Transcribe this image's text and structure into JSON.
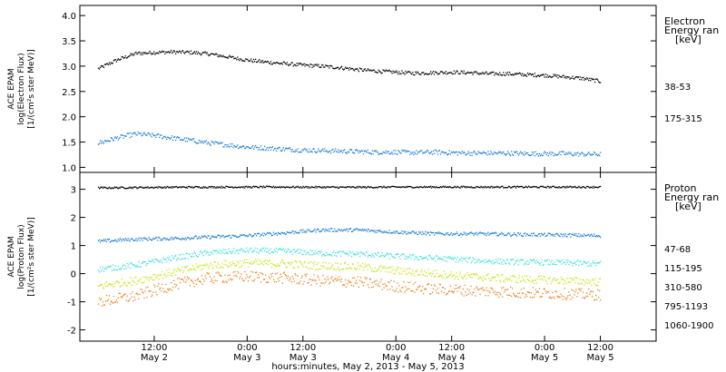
{
  "chart_data": [
    {
      "type": "scatter",
      "panel": "electron",
      "ylabel_lines": [
        "ACE EPAM",
        "log(Electron Flux)",
        "[1/(cm²s ster MeV)]"
      ],
      "ylim": [
        0.9,
        4.2
      ],
      "yticks": [
        1.0,
        1.5,
        2.0,
        2.5,
        3.0,
        3.5,
        4.0
      ],
      "ytick_labels": [
        "1.0",
        "1.5",
        "2.0",
        "2.5",
        "3.0",
        "3.5",
        "4.0"
      ],
      "legend_title_lines": [
        "Electron",
        "Energy ran",
        "[keV]"
      ],
      "series": [
        {
          "name": "38-53",
          "color": "#000000",
          "x": [
            0,
            3,
            6,
            9,
            12,
            15,
            18,
            21,
            24,
            27,
            30,
            33,
            36,
            39,
            42,
            45,
            48,
            51,
            54,
            57,
            60,
            63,
            66,
            69,
            72,
            75,
            78,
            81
          ],
          "values": [
            2.95,
            3.12,
            3.25,
            3.27,
            3.28,
            3.27,
            3.24,
            3.18,
            3.12,
            3.08,
            3.05,
            3.02,
            3.0,
            2.97,
            2.93,
            2.9,
            2.88,
            2.86,
            2.87,
            2.88,
            2.87,
            2.85,
            2.85,
            2.83,
            2.82,
            2.79,
            2.76,
            2.7
          ],
          "noise": 0.035
        },
        {
          "name": "175-315",
          "color": "#1e7fd8",
          "x": [
            0,
            3,
            6,
            9,
            12,
            15,
            18,
            21,
            24,
            27,
            30,
            33,
            36,
            39,
            42,
            45,
            48,
            51,
            54,
            57,
            60,
            63,
            66,
            69,
            72,
            75,
            78,
            81
          ],
          "values": [
            1.48,
            1.58,
            1.66,
            1.63,
            1.58,
            1.53,
            1.48,
            1.44,
            1.4,
            1.38,
            1.36,
            1.34,
            1.33,
            1.32,
            1.31,
            1.3,
            1.3,
            1.29,
            1.3,
            1.29,
            1.28,
            1.28,
            1.28,
            1.27,
            1.27,
            1.27,
            1.26,
            1.26
          ],
          "noise": 0.045
        }
      ]
    },
    {
      "type": "scatter",
      "panel": "proton",
      "ylabel_lines": [
        "ACE EPAM",
        "log(Proton Flux)",
        "[1/(cm²s ster MeV)]"
      ],
      "ylim": [
        -2.4,
        3.6
      ],
      "yticks": [
        -2,
        -1,
        0,
        1,
        2,
        3
      ],
      "ytick_labels": [
        "-2",
        "-1",
        "0",
        "1",
        "2",
        "3"
      ],
      "legend_title_lines": [
        "Proton",
        "Energy ran",
        "[keV]"
      ],
      "series": [
        {
          "name": "47-68",
          "color": "#000000",
          "x": [
            0,
            10,
            20,
            30,
            40,
            50,
            60,
            70,
            81
          ],
          "values": [
            3.05,
            3.07,
            3.08,
            3.08,
            3.07,
            3.08,
            3.08,
            3.08,
            3.08
          ],
          "noise": 0.03
        },
        {
          "name": "115-195",
          "color": "#1e7fd8",
          "x": [
            0,
            6,
            12,
            18,
            24,
            30,
            36,
            42,
            48,
            54,
            60,
            66,
            72,
            81
          ],
          "values": [
            1.15,
            1.22,
            1.25,
            1.3,
            1.35,
            1.45,
            1.55,
            1.55,
            1.48,
            1.42,
            1.42,
            1.4,
            1.38,
            1.35
          ],
          "noise": 0.06
        },
        {
          "name": "310-580",
          "color": "#3ce0dc",
          "x": [
            0,
            6,
            12,
            18,
            24,
            30,
            36,
            42,
            48,
            54,
            60,
            66,
            72,
            81
          ],
          "values": [
            0.15,
            0.3,
            0.55,
            0.75,
            0.82,
            0.8,
            0.72,
            0.7,
            0.62,
            0.55,
            0.48,
            0.42,
            0.4,
            0.35
          ],
          "noise": 0.1
        },
        {
          "name": "795-1193",
          "color": "#c8e614",
          "x": [
            0,
            6,
            12,
            18,
            24,
            30,
            36,
            42,
            48,
            54,
            60,
            66,
            72,
            81
          ],
          "values": [
            -0.45,
            -0.25,
            0.05,
            0.3,
            0.38,
            0.35,
            0.28,
            0.25,
            0.1,
            0.0,
            -0.1,
            -0.18,
            -0.22,
            -0.3
          ],
          "noise": 0.14
        },
        {
          "name": "1060-1900",
          "color": "#e8821c",
          "x": [
            0,
            6,
            12,
            18,
            24,
            30,
            36,
            42,
            48,
            54,
            60,
            66,
            72,
            81
          ],
          "values": [
            -1.0,
            -0.8,
            -0.4,
            -0.15,
            -0.1,
            -0.15,
            -0.25,
            -0.3,
            -0.45,
            -0.55,
            -0.6,
            -0.65,
            -0.7,
            -0.75
          ],
          "noise": 0.2
        }
      ]
    }
  ],
  "xaxis": {
    "xlim": [
      -3,
      90
    ],
    "ticks": [
      9,
      24,
      33,
      48,
      57,
      72,
      81,
      96
    ],
    "tick_labels": [
      {
        "time": "12:00",
        "day": "May 2"
      },
      {
        "time": "0:00",
        "day": "May 3"
      },
      {
        "time": "12:00",
        "day": "May 3"
      },
      {
        "time": "0:00",
        "day": "May 4"
      },
      {
        "time": "12:00",
        "day": "May 4"
      },
      {
        "time": "0:00",
        "day": "May 5"
      },
      {
        "time": "12:00",
        "day": "May 5"
      }
    ],
    "label": "hours:minutes, May  2, 2013 - May  5, 2013"
  }
}
